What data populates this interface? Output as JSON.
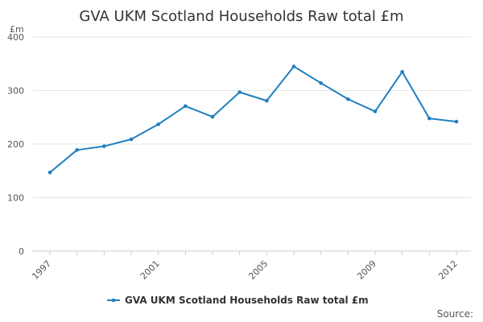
{
  "chart_data": {
    "type": "line",
    "title": "GVA UKM Scotland Households Raw total £m",
    "ylabel": "£m",
    "xlabel": "",
    "x": [
      1997,
      1998,
      1999,
      2000,
      2001,
      2002,
      2003,
      2004,
      2005,
      2006,
      2007,
      2008,
      2009,
      2010,
      2011,
      2012
    ],
    "x_tick_labels": [
      "1997",
      "2001",
      "2005",
      "2009",
      "2012"
    ],
    "x_tick_values": [
      1997,
      2001,
      2005,
      2009,
      2012
    ],
    "y_ticks": [
      0,
      100,
      200,
      300,
      400
    ],
    "ylim": [
      0,
      400
    ],
    "xlim": [
      1997,
      2012
    ],
    "series": [
      {
        "name": "GVA UKM Scotland Households Raw total £m",
        "values": [
          147,
          189,
          196,
          209,
          237,
          271,
          251,
          297,
          281,
          345,
          314,
          284,
          261,
          335,
          248,
          242
        ]
      }
    ],
    "grid": true,
    "legend_position": "bottom",
    "colors": {
      "series": "#1f7fbf",
      "grid": "#e6e6e6",
      "axis": "#cccccc"
    }
  },
  "footer": {
    "source_label": "Source:"
  }
}
